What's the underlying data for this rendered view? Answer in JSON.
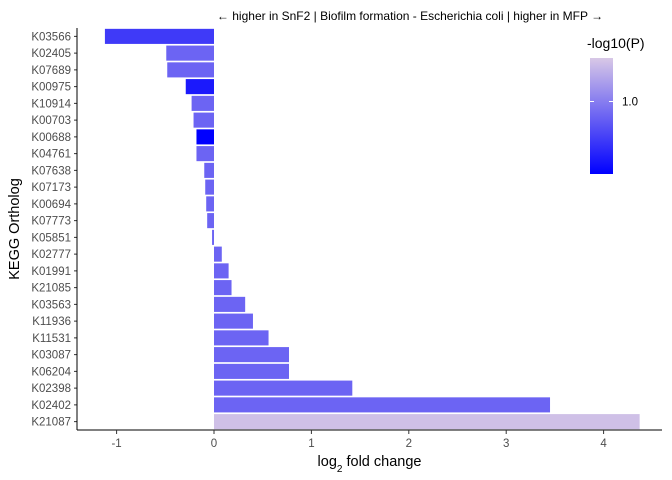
{
  "chart_data": {
    "type": "bar",
    "orientation": "horizontal",
    "title": "← higher in SnF2 | Biofilm formation - Escherichia coli | higher in MFP →",
    "xlabel_main": "log",
    "xlabel_sub": "2",
    "xlabel_rest": " fold change",
    "ylabel": "KEGG Ortholog",
    "xlim": [
      -1.12,
      4.38
    ],
    "xticks": [
      -1,
      0,
      1,
      2,
      3,
      4
    ],
    "grid": false,
    "legend": {
      "title": "-log10(P)",
      "position": "top-right",
      "tick_label": "1.0",
      "tick_value": 1.0,
      "range": [
        0.85,
        1.09
      ],
      "color_low": "#0000ff",
      "color_high": "#d8c8e6"
    },
    "categories": [
      "K03566",
      "K02405",
      "K07689",
      "K00975",
      "K10914",
      "K00703",
      "K00688",
      "K04761",
      "K07638",
      "K07173",
      "K00694",
      "K07773",
      "K05851",
      "K02777",
      "K01991",
      "K21085",
      "K03563",
      "K11936",
      "K11531",
      "K03087",
      "K06204",
      "K02398",
      "K02402",
      "K21087"
    ],
    "values": [
      -1.12,
      -0.49,
      -0.48,
      -0.29,
      -0.23,
      -0.21,
      -0.18,
      -0.18,
      -0.1,
      -0.09,
      -0.08,
      -0.07,
      -0.02,
      0.08,
      0.15,
      0.18,
      0.32,
      0.4,
      0.56,
      0.77,
      0.77,
      1.42,
      3.45,
      4.37
    ],
    "neglog10p": [
      0.92,
      0.97,
      0.97,
      0.88,
      0.97,
      0.97,
      0.85,
      0.97,
      0.97,
      0.97,
      0.97,
      0.97,
      0.97,
      0.97,
      0.97,
      0.97,
      0.97,
      0.97,
      0.97,
      0.97,
      0.97,
      0.97,
      0.97,
      1.08
    ]
  }
}
